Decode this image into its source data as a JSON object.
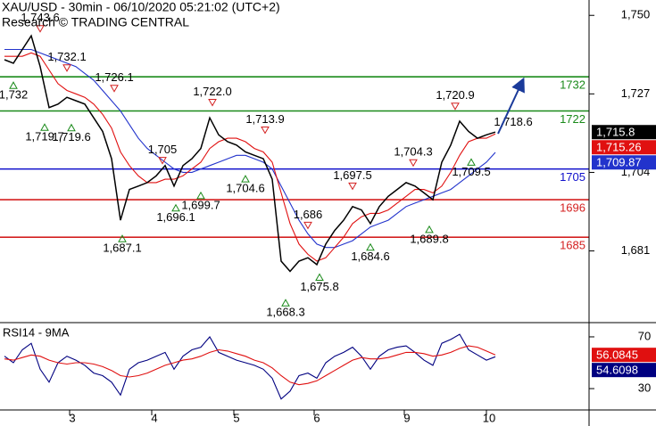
{
  "chart_data": [
    {
      "type": "line",
      "title": "XAU/USD - 30min - 06/10/2020 05:21:02 (UTC+2)",
      "subtitle": "Research © TRADING CENTRAL",
      "x": [
        0,
        1,
        2,
        3,
        4,
        5,
        6,
        7,
        8,
        9,
        10,
        11,
        12,
        13,
        14,
        15,
        16,
        17,
        18,
        19,
        20,
        21,
        22,
        23,
        24,
        25,
        26,
        27,
        28,
        29,
        30,
        31,
        32,
        33,
        34,
        35,
        36,
        37,
        38,
        39,
        40,
        41,
        42,
        43,
        44,
        45,
        46,
        47,
        48,
        49,
        50,
        51,
        52,
        53,
        54,
        55
      ],
      "xlim": [
        -0.5,
        65.5
      ],
      "ylim": [
        1660,
        1754.5
      ],
      "yticks": [
        {
          "value": 1750,
          "label": "1,750"
        },
        {
          "value": 1727,
          "label": "1,727"
        },
        {
          "value": 1704,
          "label": "1,704"
        },
        {
          "value": 1681,
          "label": "1,681"
        }
      ],
      "series": [
        {
          "name": "XAU/USD",
          "color": "#000000",
          "last_label": "1,715.8",
          "values": [
            1737,
            1736,
            1740,
            1744,
            1735,
            1723,
            1724,
            1726,
            1725,
            1724,
            1720,
            1716,
            1708,
            1690,
            1699,
            1700,
            1701,
            1703,
            1706,
            1700,
            1706,
            1708,
            1711,
            1720,
            1715,
            1713,
            1712,
            1710,
            1709,
            1708,
            1702,
            1678,
            1675,
            1678,
            1679,
            1677,
            1683,
            1687,
            1690,
            1694,
            1693,
            1689,
            1694,
            1697,
            1699,
            1701,
            1700,
            1698,
            1696,
            1707,
            1712,
            1719,
            1716,
            1714,
            1715,
            1715.8
          ]
        },
        {
          "color": "#e01010",
          "last_label": "1,715.26",
          "values": [
            1738,
            1738,
            1738,
            1739,
            1738,
            1734,
            1730,
            1728,
            1727,
            1726,
            1724,
            1721,
            1717,
            1710,
            1706,
            1703,
            1701,
            1701,
            1702,
            1702,
            1703,
            1705,
            1707,
            1711,
            1713,
            1714,
            1714,
            1713,
            1711,
            1710,
            1707,
            1698,
            1689,
            1683,
            1680,
            1678,
            1679,
            1682,
            1685,
            1689,
            1691,
            1692,
            1692,
            1693,
            1695,
            1697,
            1699,
            1699,
            1698,
            1700,
            1704,
            1709,
            1713,
            1714,
            1714,
            1715.26
          ]
        },
        {
          "color": "#2233cc",
          "last_label": "1,709.87",
          "values": [
            1740,
            1740,
            1740,
            1740,
            1739,
            1738,
            1737,
            1736,
            1735,
            1733,
            1731,
            1728,
            1725,
            1722,
            1718,
            1714,
            1711,
            1709,
            1707,
            1705,
            1704,
            1704,
            1705,
            1706,
            1707,
            1708,
            1709,
            1709,
            1708,
            1707,
            1705,
            1700,
            1695,
            1690,
            1686,
            1683,
            1682,
            1682,
            1683,
            1684,
            1686,
            1688,
            1689,
            1690,
            1692,
            1694,
            1695,
            1696,
            1697,
            1698,
            1699,
            1701,
            1703,
            1705,
            1707,
            1709.87
          ]
        }
      ],
      "levels": [
        {
          "value": 1732,
          "color": "#1a8a1a"
        },
        {
          "value": 1722,
          "color": "#1a8a1a"
        },
        {
          "value": 1705,
          "color": "#1010cc"
        },
        {
          "value": 1696,
          "color": "#d42020"
        },
        {
          "value": 1685,
          "color": "#d42020"
        }
      ],
      "annotations": [
        {
          "x": 4.0,
          "value": 1743.6,
          "label": "1,743.6",
          "kind": "high"
        },
        {
          "x": 1.0,
          "value": 1732,
          "label": "1,732",
          "kind": "low"
        },
        {
          "x": 7.0,
          "value": 1732.1,
          "label": "1,732.1",
          "kind": "high"
        },
        {
          "x": 4.5,
          "value": 1719.7,
          "label": "1,719.7",
          "kind": "low"
        },
        {
          "x": 7.5,
          "value": 1719.6,
          "label": "1,719.6",
          "kind": "low"
        },
        {
          "x": 12.3,
          "value": 1726.1,
          "label": "1,726.1",
          "kind": "high"
        },
        {
          "x": 13.2,
          "value": 1687.1,
          "label": "1,687.1",
          "kind": "low"
        },
        {
          "x": 17.7,
          "value": 1705,
          "label": "1,705",
          "kind": "high"
        },
        {
          "x": 19.2,
          "value": 1696.1,
          "label": "1,696.1",
          "kind": "low"
        },
        {
          "x": 22.0,
          "value": 1699.7,
          "label": "1,699.7",
          "kind": "low"
        },
        {
          "x": 23.3,
          "value": 1722.0,
          "label": "1,722.0",
          "kind": "high"
        },
        {
          "x": 27.0,
          "value": 1704.6,
          "label": "1,704.6",
          "kind": "low"
        },
        {
          "x": 29.2,
          "value": 1713.9,
          "label": "1,713.9",
          "kind": "high"
        },
        {
          "x": 31.5,
          "value": 1668.3,
          "label": "1,668.3",
          "kind": "low"
        },
        {
          "x": 34.0,
          "value": 1686,
          "label": "1,686",
          "kind": "high"
        },
        {
          "x": 35.3,
          "value": 1675.8,
          "label": "1,675.8",
          "kind": "low"
        },
        {
          "x": 39.0,
          "value": 1697.5,
          "label": "1,697.5",
          "kind": "high"
        },
        {
          "x": 41.0,
          "value": 1684.6,
          "label": "1,684.6",
          "kind": "low"
        },
        {
          "x": 45.8,
          "value": 1704.3,
          "label": "1,704.3",
          "kind": "high"
        },
        {
          "x": 47.6,
          "value": 1689.8,
          "label": "1,689.8",
          "kind": "low"
        },
        {
          "x": 50.5,
          "value": 1720.9,
          "label": "1,720.9",
          "kind": "high"
        },
        {
          "x": 52.3,
          "value": 1709.5,
          "label": "1,709.5",
          "kind": "low"
        },
        {
          "x": 57.0,
          "value": 1718.6,
          "label": "1,718.6",
          "kind": "label"
        }
      ]
    },
    {
      "type": "line",
      "title": "RSI14 - 9MA",
      "x": [
        0,
        1,
        2,
        3,
        4,
        5,
        6,
        7,
        8,
        9,
        10,
        11,
        12,
        13,
        14,
        15,
        16,
        17,
        18,
        19,
        20,
        21,
        22,
        23,
        24,
        25,
        26,
        27,
        28,
        29,
        30,
        31,
        32,
        33,
        34,
        35,
        36,
        37,
        38,
        39,
        40,
        41,
        42,
        43,
        44,
        45,
        46,
        47,
        48,
        49,
        50,
        51,
        52,
        53,
        54,
        55
      ],
      "xlim": [
        -0.5,
        65.5
      ],
      "xticks": [
        {
          "value": 7.3,
          "label": "3"
        },
        {
          "value": 16.5,
          "label": "4"
        },
        {
          "value": 25.7,
          "label": "5"
        },
        {
          "value": 34.7,
          "label": "6"
        },
        {
          "value": 44.8,
          "label": "9"
        },
        {
          "value": 54.0,
          "label": "10"
        }
      ],
      "ylim": [
        13.5,
        81
      ],
      "yticks": [
        70,
        30
      ],
      "series": [
        {
          "color": "#e01010",
          "last_label": "56.0845",
          "values": [
            53,
            52,
            54,
            56,
            55,
            52,
            50,
            49,
            50,
            50,
            49,
            47,
            44,
            40,
            39,
            40,
            42,
            45,
            48,
            50,
            52,
            53,
            55,
            58,
            60,
            59,
            57,
            55,
            52,
            50,
            46,
            40,
            35,
            33,
            34,
            36,
            40,
            44,
            48,
            52,
            54,
            53,
            53,
            54,
            56,
            58,
            58,
            57,
            55,
            56,
            58,
            61,
            63,
            62,
            59,
            56.0845
          ]
        },
        {
          "color": "#000080",
          "last_label": "54.6098",
          "values": [
            55,
            50,
            60,
            65,
            45,
            35,
            50,
            55,
            52,
            48,
            42,
            40,
            35,
            25,
            45,
            50,
            52,
            55,
            58,
            45,
            55,
            60,
            62,
            70,
            58,
            55,
            52,
            50,
            48,
            45,
            38,
            22,
            28,
            40,
            42,
            38,
            50,
            55,
            58,
            62,
            55,
            45,
            55,
            60,
            62,
            63,
            58,
            52,
            48,
            65,
            68,
            72,
            60,
            56,
            52,
            54.6098
          ]
        }
      ]
    }
  ]
}
